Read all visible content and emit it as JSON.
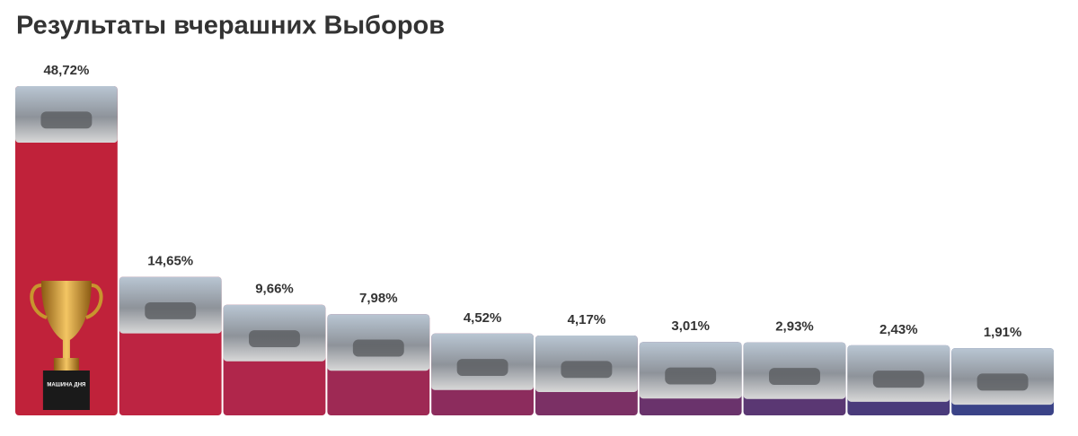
{
  "chart_data": {
    "type": "bar",
    "title": "Результаты вчерашних Выборов",
    "values": [
      48.72,
      14.65,
      9.66,
      7.98,
      4.52,
      4.17,
      3.01,
      2.93,
      2.43,
      1.91
    ],
    "value_labels": [
      "48,72%",
      "14,65%",
      "9,66%",
      "7,98%",
      "4,52%",
      "4,17%",
      "3,01%",
      "2,93%",
      "2,43%",
      "1,91%"
    ],
    "colors": [
      "#c0223a",
      "#bd2442",
      "#b0264b",
      "#9e2954",
      "#8c2c5d",
      "#7b3065",
      "#6a336c",
      "#5a3773",
      "#4a3b7b",
      "#3b4387"
    ],
    "badge": "МАШИНА ДНЯ"
  }
}
